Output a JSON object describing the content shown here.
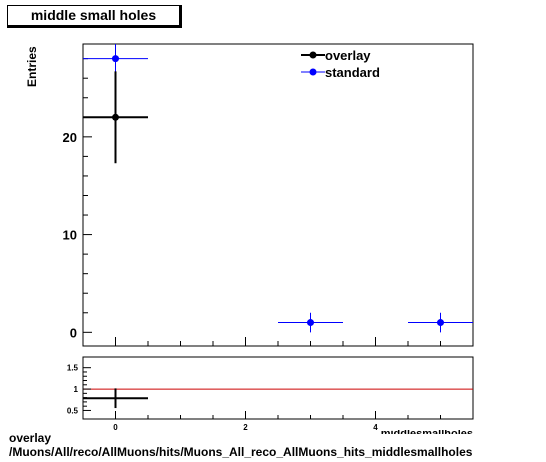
{
  "title": "middle small holes",
  "ylabel": "Entries",
  "xlabel_partial": "hits_middlesmallholes",
  "footer": {
    "line1": "overlay",
    "line2": "/Muons/All/reco/AllMuons/hits/Muons_All_reco_AllMuons_hits_middlesmallholes"
  },
  "colors": {
    "overlay": "#000000",
    "standard": "#0000ff",
    "ratio_line": "#cc0000"
  },
  "chart_data": [
    {
      "type": "scatter",
      "panel": "main",
      "xlim": [
        -0.5,
        5.5
      ],
      "ylim": [
        -1.4,
        29.5
      ],
      "yticks": [
        0,
        10,
        20
      ],
      "legend_position": "top-right",
      "series": [
        {
          "name": "overlay",
          "marker": "filled-circle",
          "points": [
            {
              "x": 0,
              "xerr": 0.5,
              "y": 22,
              "yerr": 4.7
            }
          ]
        },
        {
          "name": "standard",
          "marker": "filled-circle",
          "points": [
            {
              "x": 0,
              "xerr": 0.5,
              "y": 28,
              "yerr": 5.3
            },
            {
              "x": 3,
              "xerr": 0.5,
              "y": 1,
              "yerr": 1
            },
            {
              "x": 5,
              "xerr": 0.5,
              "y": 1,
              "yerr": 1
            }
          ]
        }
      ]
    },
    {
      "type": "scatter",
      "panel": "ratio",
      "xlim": [
        -0.5,
        5.5
      ],
      "ylim": [
        0.3,
        1.75
      ],
      "xticks": [
        0,
        2,
        4
      ],
      "yticks": [
        0.5,
        1,
        1.5
      ],
      "reference_line": 1,
      "series": [
        {
          "name": "overlay/standard",
          "points": [
            {
              "x": 0,
              "xerr": 0.5,
              "y": 0.786,
              "yerr": 0.23
            }
          ]
        }
      ]
    }
  ]
}
